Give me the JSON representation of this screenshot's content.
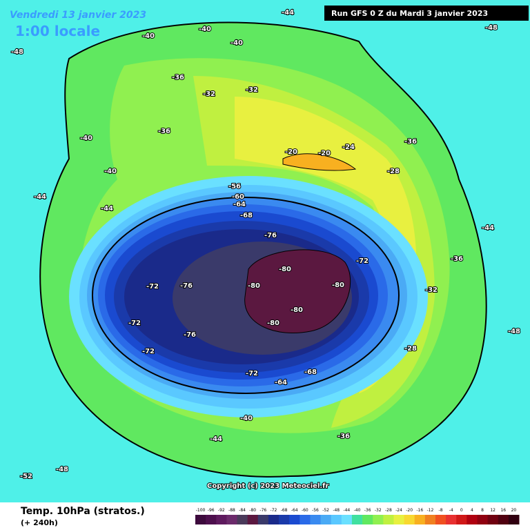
{
  "header": {
    "date": "Vendredi 13 janvier 2023",
    "time": "1:00 locale",
    "run": "Run GFS 0 Z du Mardi 3 janvier 2023"
  },
  "copyright": "Copyright (c) 2023 Meteociel.fr",
  "footer": {
    "title": "Temp. 10hPa (stratos.)",
    "lead": "(+ 240h)"
  },
  "colorbar": {
    "ticks": [
      -100,
      -96,
      -92,
      -88,
      -84,
      -80,
      -76,
      -72,
      -68,
      -64,
      -60,
      -56,
      -52,
      -48,
      -44,
      -40,
      -36,
      -32,
      -28,
      -24,
      -20,
      -16,
      -12,
      -8,
      -4,
      0,
      4,
      8,
      12,
      16,
      20
    ],
    "colors": [
      "#3d0a3d",
      "#4d0f4d",
      "#5e1a5e",
      "#6b2a6b",
      "#4a3a5a",
      "#5b1840",
      "#3a3a6a",
      "#1a2a8a",
      "#1a3aaa",
      "#1a4ad0",
      "#2a6ae8",
      "#3a8af0",
      "#4aaaf5",
      "#5ac8ff",
      "#6ae0ff",
      "#40e0a0",
      "#60e860",
      "#90f050",
      "#c0f040",
      "#e8f040",
      "#f8d830",
      "#f8b020",
      "#f08020",
      "#f05020",
      "#e83030",
      "#d01818",
      "#b00010",
      "#900010",
      "#700010",
      "#500010",
      "#300010"
    ]
  },
  "contour_labels": [
    "-40",
    "-40",
    "-40",
    "-44",
    "-48",
    "-36",
    "-32",
    "-32",
    "-36",
    "-40",
    "-40",
    "-20",
    "-20",
    "-24",
    "-28",
    "-36",
    "-44",
    "-44",
    "-56",
    "-60",
    "-64",
    "-68",
    "-76",
    "-72",
    "-80",
    "-80",
    "-80",
    "-80",
    "-80",
    "-76",
    "-72",
    "-72",
    "-76",
    "-72",
    "-72",
    "-68",
    "-64",
    "-40",
    "-36",
    "-44",
    "-48",
    "-52",
    "-36",
    "-32",
    "-28",
    "-48",
    "-44",
    "-48"
  ]
}
